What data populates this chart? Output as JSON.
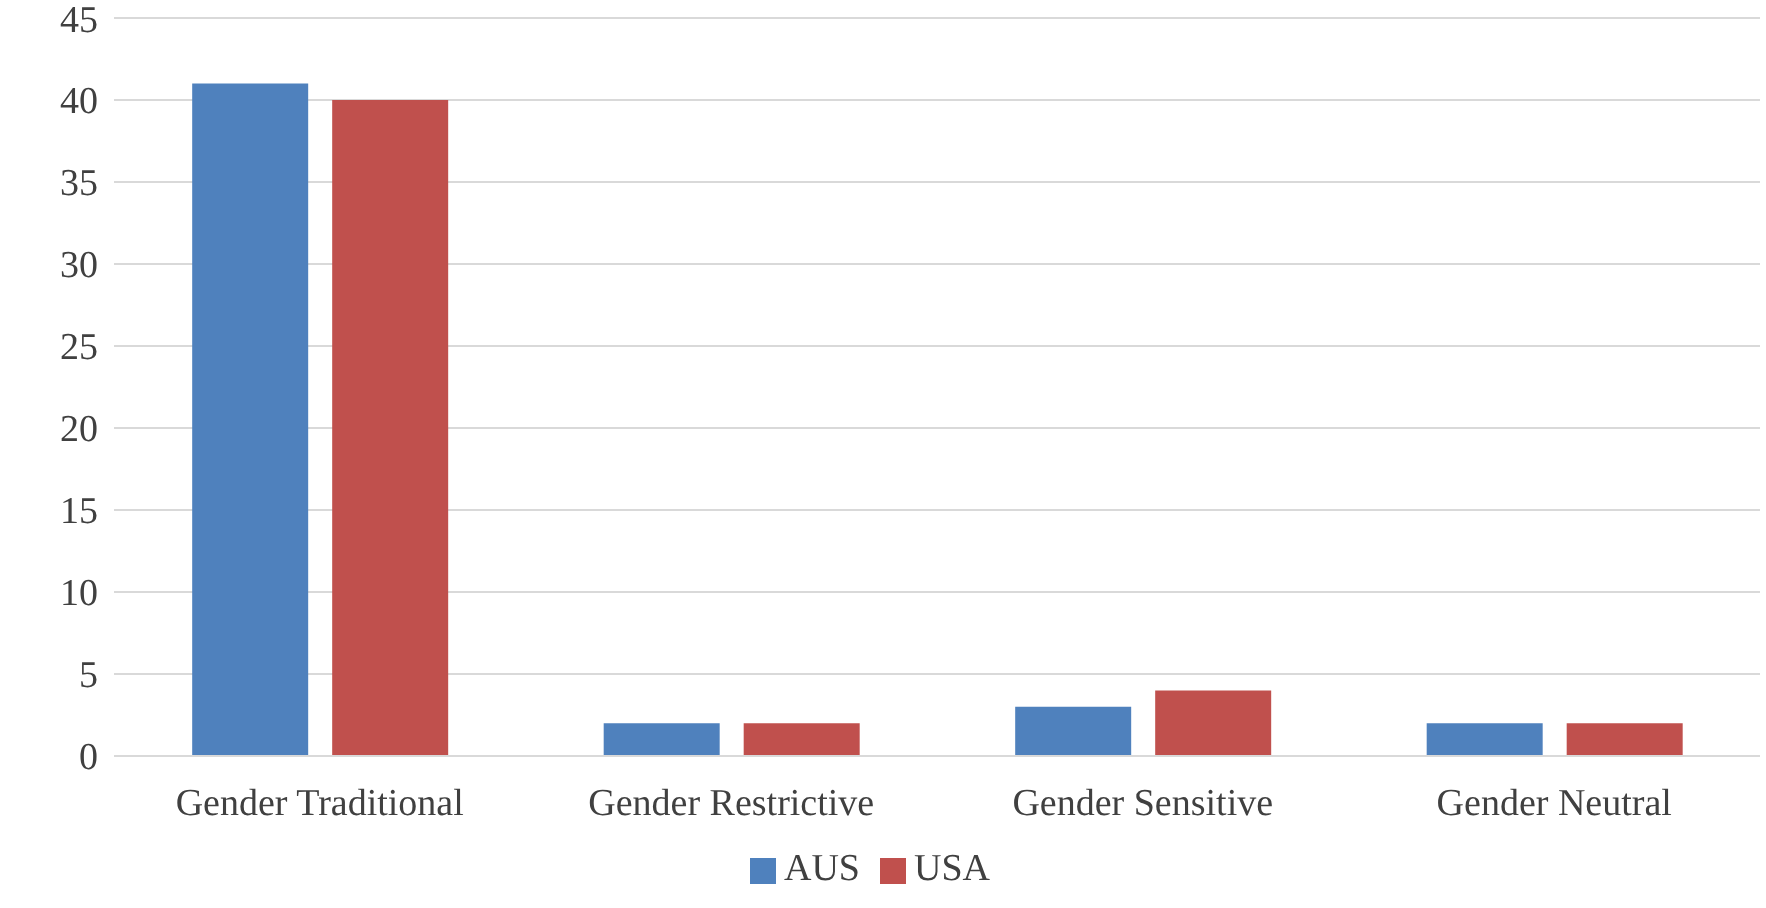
{
  "chart_data": {
    "type": "bar",
    "categories": [
      "Gender Traditional",
      "Gender Restrictive",
      "Gender Sensitive",
      "Gender Neutral"
    ],
    "series": [
      {
        "name": "AUS",
        "color": "#4f81bd",
        "values": [
          41,
          2,
          3,
          2
        ]
      },
      {
        "name": "USA",
        "color": "#c0504d",
        "values": [
          40,
          2,
          4,
          2
        ]
      }
    ],
    "ylim": [
      0,
      45
    ],
    "yticks": [
      0,
      5,
      10,
      15,
      20,
      25,
      30,
      35,
      40,
      45
    ],
    "grid": "y",
    "legend": "bottom"
  }
}
